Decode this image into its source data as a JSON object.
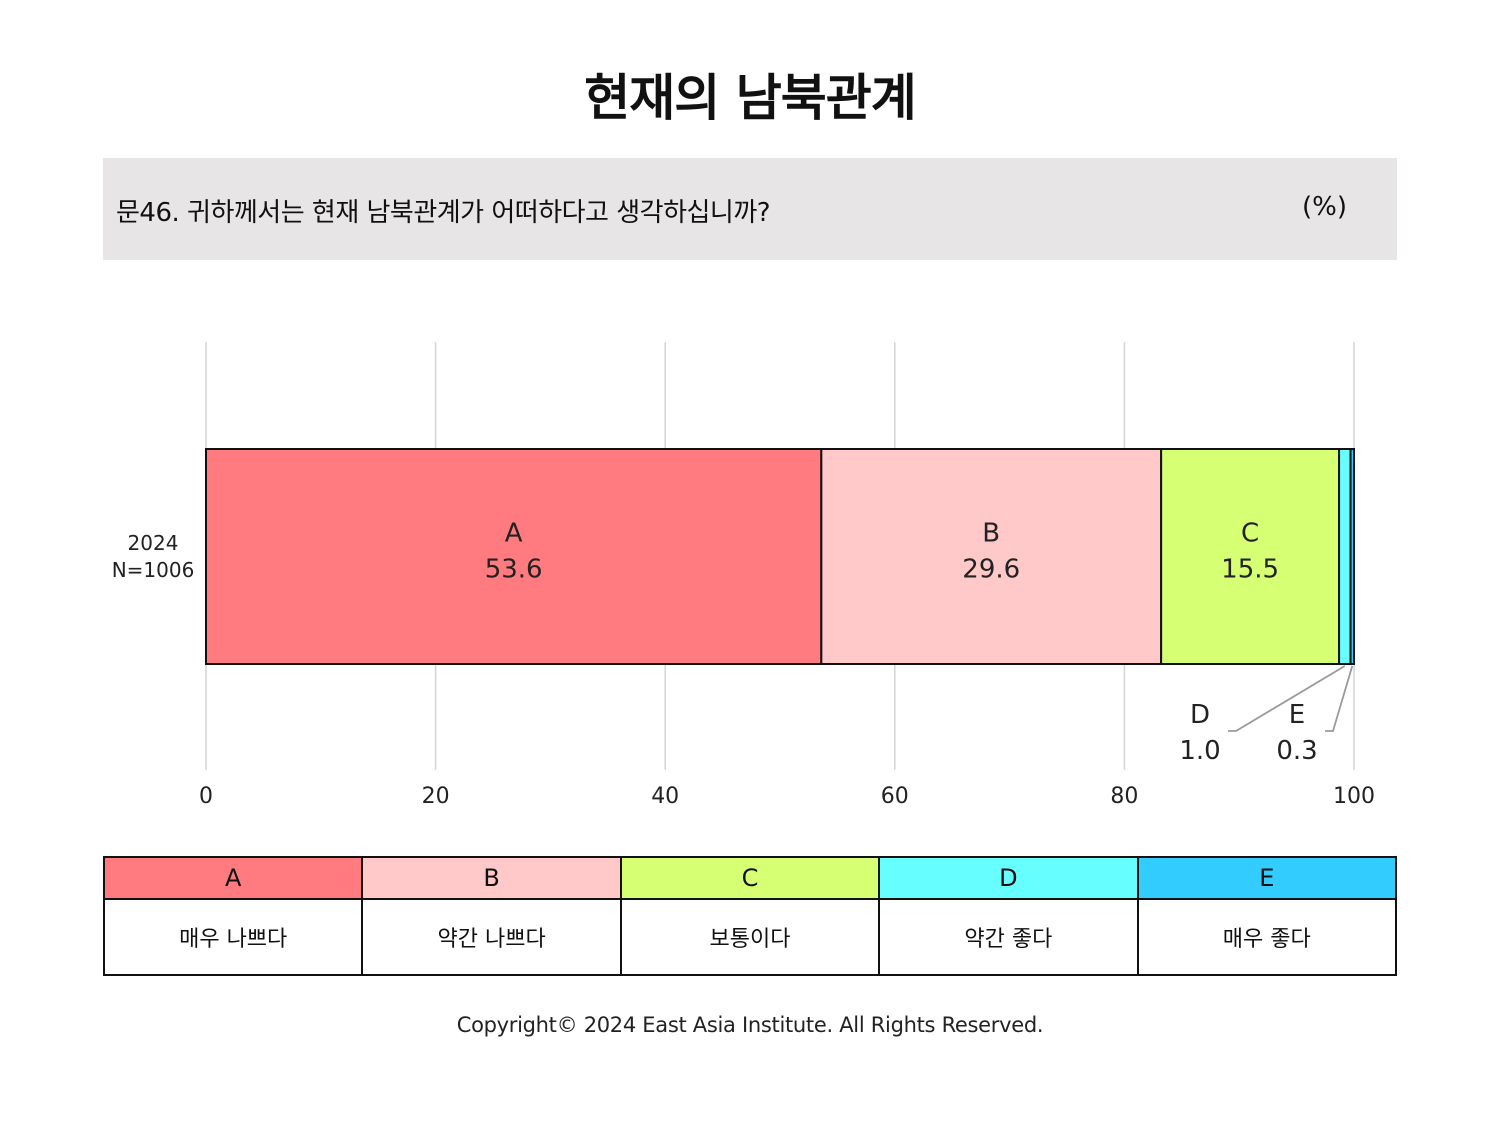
{
  "title": "현재의 남북관계",
  "question": {
    "text": "문46. 귀하께서는 현재 남북관계가 어떠하다고 생각하십니까?",
    "unit": "(%)"
  },
  "chart_data": {
    "type": "bar",
    "orientation": "horizontal",
    "stacked": true,
    "categories": [
      "2024\nN=1006"
    ],
    "row_label_lines": [
      "2024",
      "N=1006"
    ],
    "series": [
      {
        "name": "A",
        "values": [
          53.6
        ],
        "color": "#ff7b7f"
      },
      {
        "name": "B",
        "values": [
          29.6
        ],
        "color": "#ffc9c9"
      },
      {
        "name": "C",
        "values": [
          15.5
        ],
        "color": "#d6ff73"
      },
      {
        "name": "D",
        "values": [
          1.0
        ],
        "color": "#67feff"
      },
      {
        "name": "E",
        "values": [
          0.3
        ],
        "color": "#33ccff"
      }
    ],
    "xlim": [
      0,
      100
    ],
    "xticks": [
      0,
      20,
      40,
      60,
      80,
      100
    ],
    "grid": true
  },
  "legend": [
    {
      "key": "A",
      "label": "매우 나쁘다",
      "color": "#ff7b7f"
    },
    {
      "key": "B",
      "label": "약간 나쁘다",
      "color": "#ffc9c9"
    },
    {
      "key": "C",
      "label": "보통이다",
      "color": "#d6ff73"
    },
    {
      "key": "D",
      "label": "약간 좋다",
      "color": "#67feff"
    },
    {
      "key": "E",
      "label": "매우 좋다",
      "color": "#33ccff"
    }
  ],
  "copyright": "Copyright© 2024 East Asia Institute. All Rights Reserved."
}
